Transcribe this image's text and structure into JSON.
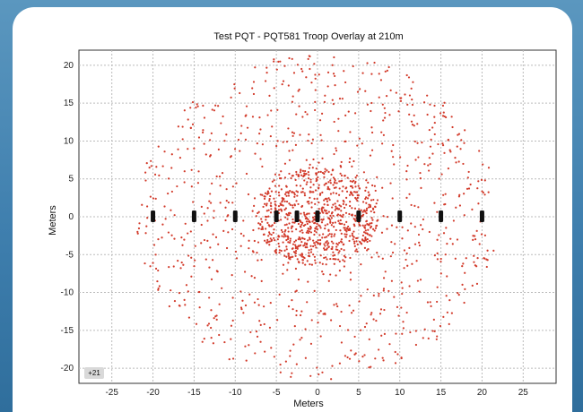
{
  "chart_data": {
    "type": "scatter",
    "title": "Test PQT - PQT581 Troop Overlay at 210m",
    "xlabel": "Meters",
    "ylabel": "Meters",
    "xlim": [
      -29,
      29
    ],
    "ylim": [
      -22,
      22
    ],
    "xticks": [
      -25,
      -20,
      -15,
      -10,
      -5,
      0,
      5,
      10,
      15,
      20,
      25
    ],
    "yticks": [
      20,
      15,
      10,
      5,
      0,
      -5,
      -10,
      -15,
      -20
    ],
    "grid": true,
    "series": [
      {
        "marker_color": "#d23a2a",
        "description_note": "",
        "core_points": 700,
        "core_radius": 6.5,
        "ring_points": 900,
        "ring_radius": 22
      },
      {
        "marker_color": "#111111",
        "troop_positions_x": [
          -20,
          -15,
          -10,
          -5,
          -2.5,
          0,
          5,
          10,
          15,
          20
        ],
        "troop_positions_y": [
          0,
          0,
          0,
          0,
          0,
          0,
          0,
          0,
          0,
          0
        ]
      }
    ],
    "corner_badge": "+21"
  }
}
